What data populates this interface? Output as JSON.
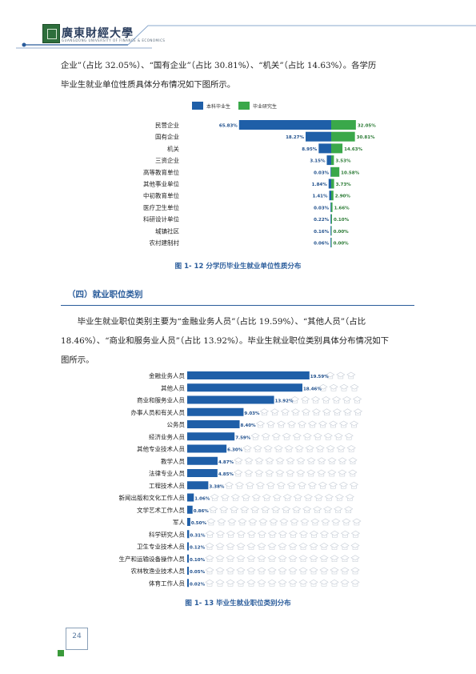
{
  "header": {
    "university_name": "廣東財經大學",
    "university_subtitle": "GUANGDONG UNIVERSITY OF FINANCE & ECONOMICS"
  },
  "para1": {
    "line1": "企业”（占比 32.05%）、“国有企业”（占比 30.81%）、“机关”（占比 14.63%）。各学历",
    "line2": "毕业生就业单位性质具体分布情况如下图所示。"
  },
  "figure12_caption": "图 1- 12  分学历毕业生就业单位性质分布",
  "section_title": "（四）就业职位类别",
  "para2": {
    "line1": "毕业生就业职位类别主要为“金融业务人员”（占比  19.59%）、“其他人员”（占比",
    "line2": "18.46%）、“商业和服务业人员”（占比 13.92%）。毕业生就业职位类别具体分布情况如下",
    "line3": "图所示。"
  },
  "figure13_caption": "图 1- 13  毕业生就业职位类别分布",
  "page_number": "24",
  "colors": {
    "undergrad": "#1f5fa8",
    "postgrad": "#3aa84a",
    "accent": "#2a5c9b"
  },
  "chart_data": [
    {
      "type": "bar",
      "orientation": "horizontal-diverging",
      "categories": [
        "民营企业",
        "国有企业",
        "机关",
        "三资企业",
        "高等教育单位",
        "其他事业单位",
        "中初教育单位",
        "医疗卫生单位",
        "科研设计单位",
        "城镇社区",
        "农村建制村"
      ],
      "series": [
        {
          "name": "本科毕业生",
          "values": [
            65.83,
            18.27,
            8.95,
            3.15,
            0.03,
            1.84,
            1.41,
            0.03,
            0.22,
            0.16,
            0.06
          ],
          "labels": [
            "65.83%",
            "18.27%",
            "8.95%",
            "3.15%",
            "0.03%",
            "1.84%",
            "1.41%",
            "0.03%",
            "0.22%",
            "0.16%",
            "0.06%"
          ]
        },
        {
          "name": "毕业研究生",
          "values": [
            32.05,
            30.81,
            14.63,
            3.53,
            10.58,
            3.73,
            2.9,
            1.66,
            0.1,
            0.0,
            0.0
          ],
          "labels": [
            "32.05%",
            "30.81%",
            "14.63%",
            "3.53%",
            "10.58%",
            "3.73%",
            "2.90%",
            "1.66%",
            "0.10%",
            "0.00%",
            "0.00%"
          ]
        }
      ],
      "legend_position": "top"
    },
    {
      "type": "bar",
      "orientation": "horizontal",
      "categories": [
        "金融业务人员",
        "其他人员",
        "商业和服务业人员",
        "办事人员和有关人员",
        "公务员",
        "经济业务人员",
        "其他专业技术人员",
        "教学人员",
        "法律专业人员",
        "工程技术人员",
        "新闻出版和文化工作人员",
        "文学艺术工作人员",
        "军人",
        "科学研究人员",
        "卫生专业技术人员",
        "生产和运输设备操作人员",
        "农林牧渔业技术人员",
        "体育工作人员"
      ],
      "values": [
        19.59,
        18.46,
        13.92,
        9.03,
        8.4,
        7.59,
        6.3,
        4.87,
        4.85,
        3.38,
        1.06,
        0.86,
        0.5,
        0.31,
        0.12,
        0.1,
        0.05,
        0.02
      ],
      "labels": [
        "19.59%",
        "18.46%",
        "13.92%",
        "9.03%",
        "8.40%",
        "7.59%",
        "6.30%",
        "4.87%",
        "4.85%",
        "3.38%",
        "1.06%",
        "0.86%",
        "0.50%",
        "0.31%",
        "0.12%",
        "0.10%",
        "0.05%",
        "0.02%"
      ]
    }
  ]
}
